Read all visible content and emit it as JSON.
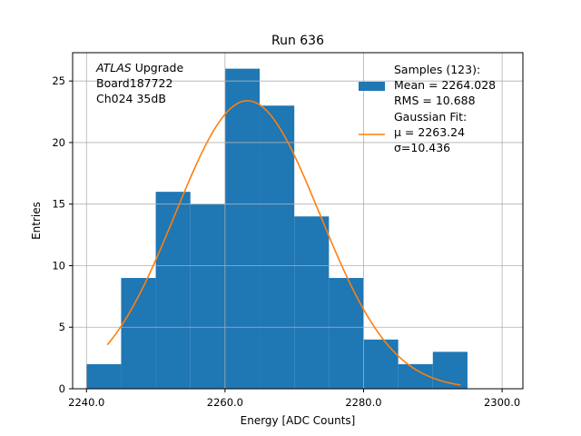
{
  "chart_data": {
    "type": "bar",
    "title": "Run 636",
    "xlabel": "Energy [ADC Counts]",
    "ylabel": "Entries",
    "xlim": [
      2238,
      2303
    ],
    "ylim": [
      0,
      27.3
    ],
    "x_ticks": [
      2240,
      2260,
      2280,
      2300
    ],
    "x_tick_labels": [
      "2240.0",
      "2260.0",
      "2280.0",
      "2300.0"
    ],
    "y_ticks": [
      0,
      5,
      10,
      15,
      20,
      25
    ],
    "y_tick_labels": [
      "0",
      "5",
      "10",
      "15",
      "20",
      "25"
    ],
    "grid": true,
    "legend_position": "top-right",
    "bin_edges": [
      2240,
      2245,
      2250,
      2255,
      2260,
      2265,
      2270,
      2275,
      2280,
      2285,
      2290,
      2295
    ],
    "counts": [
      2,
      9,
      16,
      15,
      26,
      23,
      14,
      9,
      4,
      2,
      3
    ],
    "histogram_color": "#1f77b4",
    "fit_color": "#ff7f0e",
    "fit": {
      "mu": 2263.24,
      "sigma": 10.436,
      "amplitude": 23.4,
      "x_start": 2243,
      "x_end": 2294
    },
    "annotation_lines": [
      {
        "italic": "ATLAS",
        "text": " Upgrade"
      },
      {
        "italic": "",
        "text": " Board187722"
      },
      {
        "italic": "",
        "text": " Ch024 35dB"
      }
    ],
    "legend": [
      {
        "kind": "patch",
        "lines": [
          "Samples (123):",
          " Mean = 2264.028",
          " RMS = 10.688"
        ]
      },
      {
        "kind": "line",
        "lines": [
          "Gaussian Fit:",
          " μ = 2263.24",
          " σ=10.436"
        ]
      }
    ]
  }
}
